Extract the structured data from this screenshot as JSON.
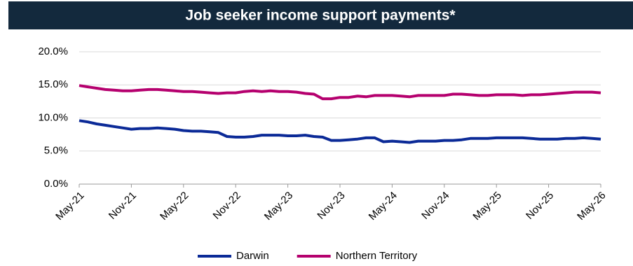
{
  "chart_data": {
    "type": "line",
    "title": "Job seeker income support payments*",
    "categories": [
      "May-21",
      null,
      null,
      null,
      null,
      null,
      "Nov-21",
      null,
      null,
      null,
      null,
      null,
      "May-22",
      null,
      null,
      null,
      null,
      null,
      "Nov-22",
      null,
      null,
      null,
      null,
      null,
      "May-23",
      null,
      null,
      null,
      null,
      null,
      "Nov-23",
      null,
      null,
      null,
      null,
      null,
      "May-24",
      null,
      null,
      null,
      null,
      null,
      "Nov-24",
      null,
      null,
      null,
      null,
      null,
      "May-25",
      null,
      null,
      null,
      null,
      null,
      "Nov-25",
      null,
      null,
      null,
      null,
      null,
      "May-26"
    ],
    "series": [
      {
        "name": "Darwin",
        "color": "#0b2a97",
        "values": [
          9.6,
          9.4,
          9.1,
          8.9,
          8.7,
          8.5,
          8.3,
          8.4,
          8.4,
          8.5,
          8.4,
          8.3,
          8.1,
          8.0,
          8.0,
          7.9,
          7.8,
          7.2,
          7.1,
          7.1,
          7.2,
          7.4,
          7.4,
          7.4,
          7.3,
          7.3,
          7.4,
          7.2,
          7.1,
          6.6,
          6.6,
          6.7,
          6.8,
          7.0,
          7.0,
          6.4,
          6.5,
          6.4,
          6.3,
          6.5,
          6.5,
          6.5,
          6.6,
          6.6,
          6.7,
          6.9,
          6.9,
          6.9,
          7.0,
          7.0,
          7.0,
          7.0,
          6.9,
          6.8,
          6.8,
          6.8,
          6.9,
          6.9,
          7.0,
          6.9,
          6.8
        ]
      },
      {
        "name": "Northern Territory",
        "color": "#b5006e",
        "values": [
          14.9,
          14.7,
          14.5,
          14.3,
          14.2,
          14.1,
          14.1,
          14.2,
          14.3,
          14.3,
          14.2,
          14.1,
          14.0,
          14.0,
          13.9,
          13.8,
          13.7,
          13.8,
          13.8,
          14.0,
          14.1,
          14.0,
          14.1,
          14.0,
          14.0,
          13.9,
          13.7,
          13.6,
          12.9,
          12.9,
          13.1,
          13.1,
          13.3,
          13.2,
          13.4,
          13.4,
          13.4,
          13.3,
          13.2,
          13.4,
          13.4,
          13.4,
          13.4,
          13.6,
          13.6,
          13.5,
          13.4,
          13.4,
          13.5,
          13.5,
          13.5,
          13.4,
          13.5,
          13.5,
          13.6,
          13.7,
          13.8,
          13.9,
          13.9,
          13.9,
          13.8
        ]
      }
    ],
    "ylim": [
      0,
      20
    ],
    "yticks": [
      {
        "value": 0,
        "label": "0.0%"
      },
      {
        "value": 5,
        "label": "5.0%"
      },
      {
        "value": 10,
        "label": "10.0%"
      },
      {
        "value": 15,
        "label": "15.0%"
      },
      {
        "value": 20,
        "label": "20.0%"
      }
    ],
    "grid": true,
    "legend": "bottom"
  }
}
